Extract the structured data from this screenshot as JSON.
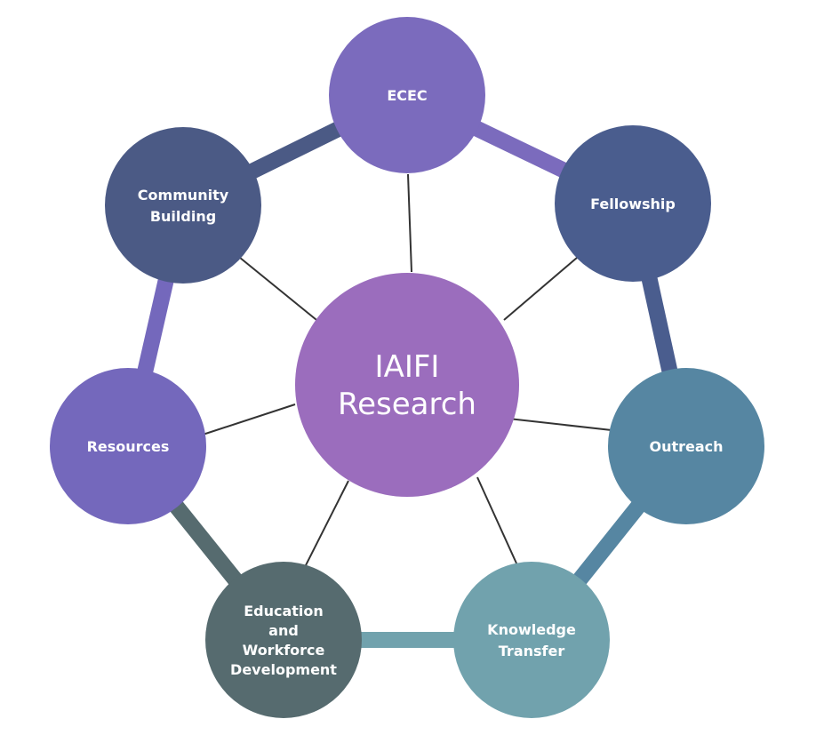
{
  "center": {
    "lines": [
      "IAIFI",
      "Research"
    ],
    "color": "#9b6dbd"
  },
  "nodes": [
    {
      "id": "ecec",
      "lines": [
        "ECEC"
      ],
      "color": "#7b6bbd",
      "ring_color": "#7b6bbd"
    },
    {
      "id": "fellowship",
      "lines": [
        "Fellowship"
      ],
      "color": "#4a5d8e",
      "ring_color": "#4a5d8e"
    },
    {
      "id": "outreach",
      "lines": [
        "Outreach"
      ],
      "color": "#5686a2",
      "ring_color": "#5686a2"
    },
    {
      "id": "knowledge-transfer",
      "lines": [
        "Knowledge",
        "Transfer"
      ],
      "color": "#71a2ad",
      "ring_color": "#71a2ad"
    },
    {
      "id": "education-workforce-development",
      "lines": [
        "Education",
        "and",
        "Workforce",
        "Development"
      ],
      "color": "#566b6f",
      "ring_color": "#566b6f"
    },
    {
      "id": "resources",
      "lines": [
        "Resources"
      ],
      "color": "#7468bc",
      "ring_color": "#7468bc"
    },
    {
      "id": "community-building",
      "lines": [
        "Community",
        "Building"
      ],
      "color": "#4b5a85",
      "ring_color": "#4b5a85"
    }
  ],
  "connector_color": "#333333"
}
